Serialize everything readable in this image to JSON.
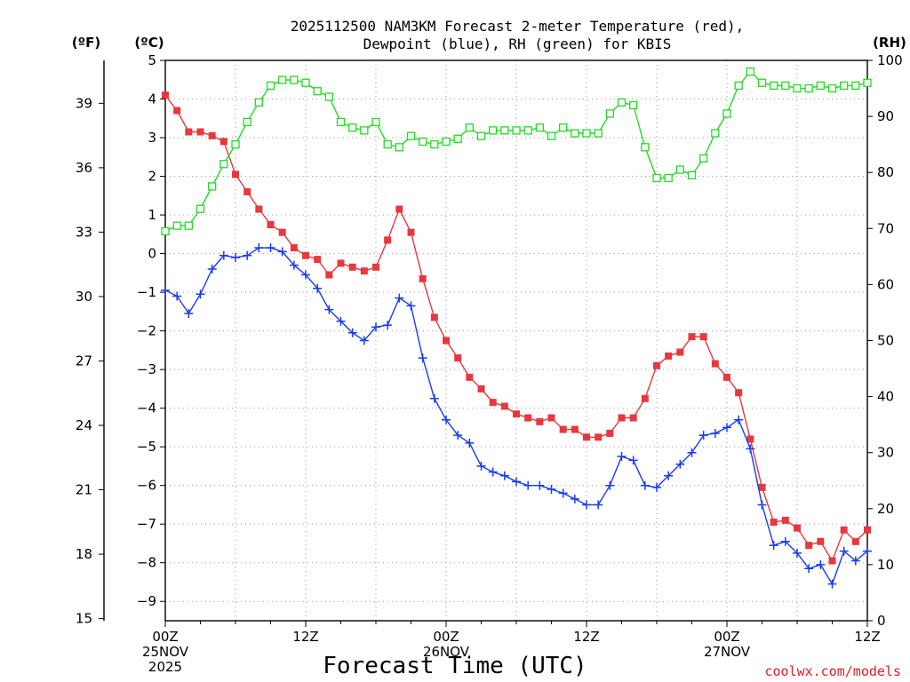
{
  "chart_data": {
    "type": "line",
    "title_line1": "2025112500 NAM3KM Forecast 2-meter Temperature (red),",
    "title_line2": "Dewpoint (blue), RH (green) for KBIS",
    "xlabel": "Forecast Time (UTC)",
    "credit": "coolwx.com/models",
    "units": {
      "fahrenheit": "(ºF)",
      "celsius": "(ºC)",
      "rh": "(RH)"
    },
    "x_range_hours": [
      0,
      60
    ],
    "celsius_range": [
      -9.5,
      5
    ],
    "fahrenheit_ticks": [
      "39",
      "36",
      "33",
      "30",
      "27",
      "24",
      "21",
      "18",
      "15"
    ],
    "celsius_ticks": [
      "5",
      "4",
      "3",
      "2",
      "1",
      "0",
      "−1",
      "−2",
      "−3",
      "−4",
      "−5",
      "−6",
      "−7",
      "−8",
      "−9"
    ],
    "rh_range": [
      0,
      100
    ],
    "rh_ticks": [
      "100",
      "90",
      "80",
      "70",
      "60",
      "50",
      "40",
      "30",
      "20",
      "10",
      "0"
    ],
    "x_ticks": [
      {
        "hour": 0,
        "line1": "00Z",
        "line2": "25NOV",
        "line3": "2025"
      },
      {
        "hour": 12,
        "line1": "12Z",
        "line2": "",
        "line3": ""
      },
      {
        "hour": 24,
        "line1": "00Z",
        "line2": "26NOV",
        "line3": ""
      },
      {
        "hour": 36,
        "line1": "12Z",
        "line2": "",
        "line3": ""
      },
      {
        "hour": 48,
        "line1": "00Z",
        "line2": "27NOV",
        "line3": ""
      },
      {
        "hour": 60,
        "line1": "12Z",
        "line2": "",
        "line3": ""
      }
    ],
    "series": [
      {
        "name": "2-meter Temperature",
        "unit": "C",
        "color": "#e8383d",
        "marker": "filled-square",
        "values": [
          4.1,
          3.7,
          3.15,
          3.15,
          3.05,
          2.9,
          2.05,
          1.6,
          1.15,
          0.75,
          0.55,
          0.15,
          -0.05,
          -0.15,
          -0.55,
          -0.25,
          -0.35,
          -0.45,
          -0.35,
          0.35,
          1.15,
          0.55,
          -0.65,
          -1.65,
          -2.25,
          -2.7,
          -3.2,
          -3.5,
          -3.85,
          -3.95,
          -4.15,
          -4.25,
          -4.35,
          -4.25,
          -4.55,
          -4.55,
          -4.75,
          -4.75,
          -4.65,
          -4.25,
          -4.25,
          -3.75,
          -2.9,
          -2.65,
          -2.55,
          -2.15,
          -2.15,
          -2.85,
          -3.2,
          -3.6,
          -4.8,
          -6.05,
          -6.95,
          -6.9,
          -7.1,
          -7.55,
          -7.45,
          -7.95,
          -7.15,
          -7.45,
          -7.15
        ]
      },
      {
        "name": "Dewpoint",
        "unit": "C",
        "color": "#1a3cf0",
        "marker": "plus",
        "values": [
          -0.95,
          -1.1,
          -1.55,
          -1.05,
          -0.4,
          -0.05,
          -0.1,
          -0.05,
          0.15,
          0.15,
          0.05,
          -0.3,
          -0.55,
          -0.9,
          -1.45,
          -1.75,
          -2.05,
          -2.25,
          -1.9,
          -1.85,
          -1.15,
          -1.35,
          -2.7,
          -3.75,
          -4.3,
          -4.7,
          -4.9,
          -5.5,
          -5.65,
          -5.75,
          -5.9,
          -6.0,
          -6.0,
          -6.1,
          -6.2,
          -6.35,
          -6.5,
          -6.5,
          -6.0,
          -5.25,
          -5.35,
          -6.0,
          -6.05,
          -5.75,
          -5.45,
          -5.15,
          -4.7,
          -4.65,
          -4.5,
          -4.3,
          -5.05,
          -6.5,
          -7.55,
          -7.45,
          -7.75,
          -8.15,
          -8.05,
          -8.55,
          -7.7,
          -7.95,
          -7.7
        ]
      },
      {
        "name": "RH",
        "unit": "%",
        "color": "#22dc22",
        "marker": "open-square",
        "values": [
          69.5,
          70.5,
          70.5,
          73.5,
          77.5,
          81.5,
          85,
          89,
          92.5,
          95.5,
          96.5,
          96.5,
          96,
          94.5,
          93.5,
          89,
          88,
          87.5,
          89,
          85,
          84.5,
          86.5,
          85.5,
          85,
          85.5,
          86,
          88,
          86.5,
          87.5,
          87.5,
          87.5,
          87.5,
          88,
          86.5,
          88,
          87,
          87,
          87,
          90.5,
          92.5,
          92,
          84.5,
          79,
          79,
          80.5,
          79.5,
          82.5,
          87,
          90.5,
          95.5,
          98,
          96,
          95.5,
          95.5,
          95,
          95,
          95.5,
          95,
          95.5,
          95.5,
          96
        ]
      }
    ]
  }
}
